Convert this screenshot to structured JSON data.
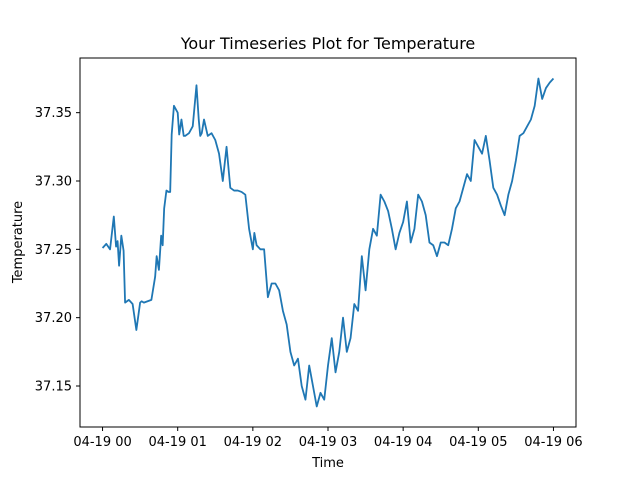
{
  "chart_data": {
    "type": "line",
    "title": "Your Timeseries Plot for Temperature",
    "xlabel": "Time",
    "ylabel": "Temperature",
    "x_ticks": [
      {
        "t": 0,
        "label": "04-19 00"
      },
      {
        "t": 1,
        "label": "04-19 01"
      },
      {
        "t": 2,
        "label": "04-19 02"
      },
      {
        "t": 3,
        "label": "04-19 03"
      },
      {
        "t": 4,
        "label": "04-19 04"
      },
      {
        "t": 5,
        "label": "04-19 05"
      },
      {
        "t": 6,
        "label": "04-19 06"
      }
    ],
    "y_ticks": [
      {
        "v": 37.15,
        "label": "37.15"
      },
      {
        "v": 37.2,
        "label": "37.20"
      },
      {
        "v": 37.25,
        "label": "37.25"
      },
      {
        "v": 37.3,
        "label": "37.30"
      },
      {
        "v": 37.35,
        "label": "37.35"
      }
    ],
    "xlim": [
      -0.3,
      6.3
    ],
    "ylim": [
      37.12,
      37.39
    ],
    "grid": false,
    "color": "#1f77b4",
    "series": [
      {
        "x": [
          0.0,
          0.05,
          0.1,
          0.15,
          0.18,
          0.2,
          0.22,
          0.25,
          0.28,
          0.3,
          0.35,
          0.4,
          0.45,
          0.5,
          0.52,
          0.55,
          0.6,
          0.65,
          0.7,
          0.72,
          0.75,
          0.78,
          0.8,
          0.82,
          0.85,
          0.88,
          0.9,
          0.92,
          0.95,
          1.0,
          1.02,
          1.05,
          1.08,
          1.1,
          1.15,
          1.2,
          1.25,
          1.28,
          1.3,
          1.32,
          1.35,
          1.4,
          1.45,
          1.5,
          1.55,
          1.6,
          1.65,
          1.7,
          1.75,
          1.8,
          1.85,
          1.9,
          1.95,
          2.0,
          2.02,
          2.05,
          2.1,
          2.15,
          2.2,
          2.25,
          2.3,
          2.35,
          2.4,
          2.45,
          2.5,
          2.55,
          2.6,
          2.65,
          2.7,
          2.75,
          2.8,
          2.85,
          2.9,
          2.95,
          3.0,
          3.05,
          3.1,
          3.15,
          3.2,
          3.25,
          3.3,
          3.35,
          3.4,
          3.45,
          3.5,
          3.55,
          3.6,
          3.65,
          3.7,
          3.75,
          3.8,
          3.85,
          3.9,
          3.95,
          4.0,
          4.05,
          4.1,
          4.15,
          4.2,
          4.25,
          4.3,
          4.35,
          4.4,
          4.45,
          4.5,
          4.55,
          4.6,
          4.65,
          4.7,
          4.75,
          4.8,
          4.85,
          4.9,
          4.95,
          5.0,
          5.05,
          5.1,
          5.15,
          5.2,
          5.25,
          5.3,
          5.35,
          5.4,
          5.45,
          5.5,
          5.55,
          5.6,
          5.65,
          5.7,
          5.75,
          5.8,
          5.85,
          5.9,
          5.95,
          6.0
        ],
        "y": [
          37.251,
          37.254,
          37.25,
          37.274,
          37.252,
          37.256,
          37.238,
          37.26,
          37.249,
          37.211,
          37.213,
          37.21,
          37.191,
          37.211,
          37.212,
          37.211,
          37.212,
          37.213,
          37.23,
          37.245,
          37.235,
          37.26,
          37.253,
          37.28,
          37.293,
          37.292,
          37.292,
          37.334,
          37.355,
          37.35,
          37.334,
          37.345,
          37.333,
          37.333,
          37.335,
          37.34,
          37.37,
          37.345,
          37.333,
          37.335,
          37.345,
          37.333,
          37.335,
          37.33,
          37.32,
          37.3,
          37.325,
          37.295,
          37.293,
          37.293,
          37.292,
          37.29,
          37.265,
          37.25,
          37.262,
          37.253,
          37.25,
          37.25,
          37.215,
          37.225,
          37.225,
          37.22,
          37.205,
          37.195,
          37.175,
          37.165,
          37.17,
          37.15,
          37.14,
          37.165,
          37.15,
          37.135,
          37.145,
          37.14,
          37.165,
          37.185,
          37.16,
          37.175,
          37.2,
          37.175,
          37.185,
          37.21,
          37.205,
          37.245,
          37.22,
          37.25,
          37.265,
          37.26,
          37.29,
          37.285,
          37.278,
          37.265,
          37.25,
          37.262,
          37.27,
          37.285,
          37.255,
          37.265,
          37.29,
          37.285,
          37.275,
          37.255,
          37.253,
          37.245,
          37.255,
          37.255,
          37.253,
          37.265,
          37.28,
          37.285,
          37.295,
          37.305,
          37.3,
          37.33,
          37.325,
          37.32,
          37.333,
          37.315,
          37.295,
          37.29,
          37.282,
          37.275,
          37.29,
          37.3,
          37.315,
          37.333,
          37.335,
          37.34,
          37.345,
          37.355,
          37.375,
          37.36,
          37.368,
          37.372,
          37.375
        ]
      }
    ]
  }
}
